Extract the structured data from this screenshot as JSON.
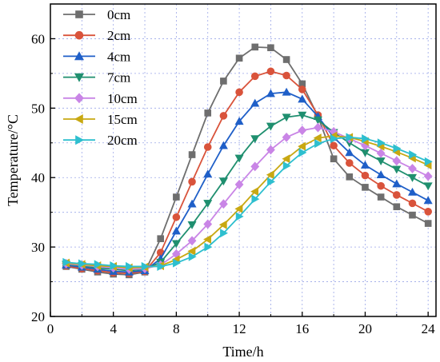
{
  "chart_data": {
    "type": "line",
    "xlabel": "Time/h",
    "ylabel": "Temperature/°C",
    "xlim": [
      0,
      24.5
    ],
    "ylim": [
      20,
      65
    ],
    "xticks": [
      0,
      4,
      8,
      12,
      16,
      20,
      24
    ],
    "yticks": [
      20,
      30,
      40,
      50,
      60
    ],
    "grid": true,
    "legend_position": "top-left",
    "x": [
      1,
      2,
      3,
      4,
      5,
      6,
      7,
      8,
      9,
      10,
      11,
      12,
      13,
      14,
      15,
      16,
      17,
      18,
      19,
      20,
      21,
      22,
      23,
      24
    ],
    "series": [
      {
        "name": "0cm",
        "color": "#6e6e6e",
        "marker": "square",
        "values": [
          27.2,
          26.8,
          26.4,
          26.1,
          26.0,
          26.4,
          31.2,
          37.2,
          43.3,
          49.3,
          53.9,
          57.2,
          58.8,
          58.7,
          57.0,
          53.5,
          48.8,
          42.7,
          40.1,
          38.6,
          37.2,
          35.8,
          34.6,
          33.4
        ]
      },
      {
        "name": "2cm",
        "color": "#d9533b",
        "marker": "circle",
        "values": [
          27.3,
          26.9,
          26.6,
          26.3,
          26.2,
          26.5,
          29.2,
          34.3,
          39.4,
          44.4,
          48.9,
          52.3,
          54.6,
          55.3,
          54.7,
          52.7,
          49.0,
          44.6,
          42.1,
          40.3,
          38.8,
          37.5,
          36.3,
          35.1
        ]
      },
      {
        "name": "4cm",
        "color": "#1f5fc8",
        "marker": "triangle-up",
        "values": [
          27.4,
          27.1,
          26.8,
          26.5,
          26.4,
          26.6,
          28.3,
          32.3,
          36.2,
          40.5,
          44.6,
          48.1,
          50.7,
          52.1,
          52.3,
          51.3,
          48.8,
          45.8,
          43.6,
          41.8,
          40.4,
          39.1,
          37.9,
          36.7
        ]
      },
      {
        "name": "7cm",
        "color": "#1f8f6f",
        "marker": "triangle-down",
        "values": [
          27.5,
          27.3,
          27.0,
          26.8,
          26.6,
          26.8,
          27.8,
          30.5,
          33.2,
          36.3,
          39.5,
          42.8,
          45.6,
          47.4,
          48.7,
          49.0,
          48.3,
          46.5,
          45.0,
          43.6,
          42.4,
          41.2,
          40.0,
          38.8
        ]
      },
      {
        "name": "10cm",
        "color": "#c985e6",
        "marker": "diamond",
        "values": [
          27.6,
          27.4,
          27.2,
          27.0,
          26.8,
          26.9,
          27.4,
          29.0,
          30.9,
          33.3,
          36.2,
          39.0,
          41.6,
          44.0,
          45.8,
          46.8,
          47.2,
          46.6,
          45.6,
          44.6,
          43.5,
          42.4,
          41.3,
          40.2
        ]
      },
      {
        "name": "15cm",
        "color": "#c8a812",
        "marker": "triangle-left",
        "values": [
          27.7,
          27.5,
          27.3,
          27.2,
          27.0,
          27.1,
          27.3,
          28.2,
          29.4,
          31.1,
          33.2,
          35.5,
          38.0,
          40.4,
          42.7,
          44.5,
          45.7,
          46.0,
          45.8,
          45.2,
          44.5,
          43.7,
          42.8,
          41.8
        ]
      },
      {
        "name": "20cm",
        "color": "#2ebfcf",
        "marker": "triangle-right",
        "values": [
          27.8,
          27.6,
          27.5,
          27.3,
          27.2,
          27.2,
          27.2,
          27.7,
          28.6,
          30.0,
          32.0,
          34.4,
          36.9,
          39.4,
          41.7,
          43.6,
          44.9,
          45.6,
          45.8,
          45.6,
          45.0,
          44.2,
          43.3,
          42.3
        ]
      }
    ]
  }
}
